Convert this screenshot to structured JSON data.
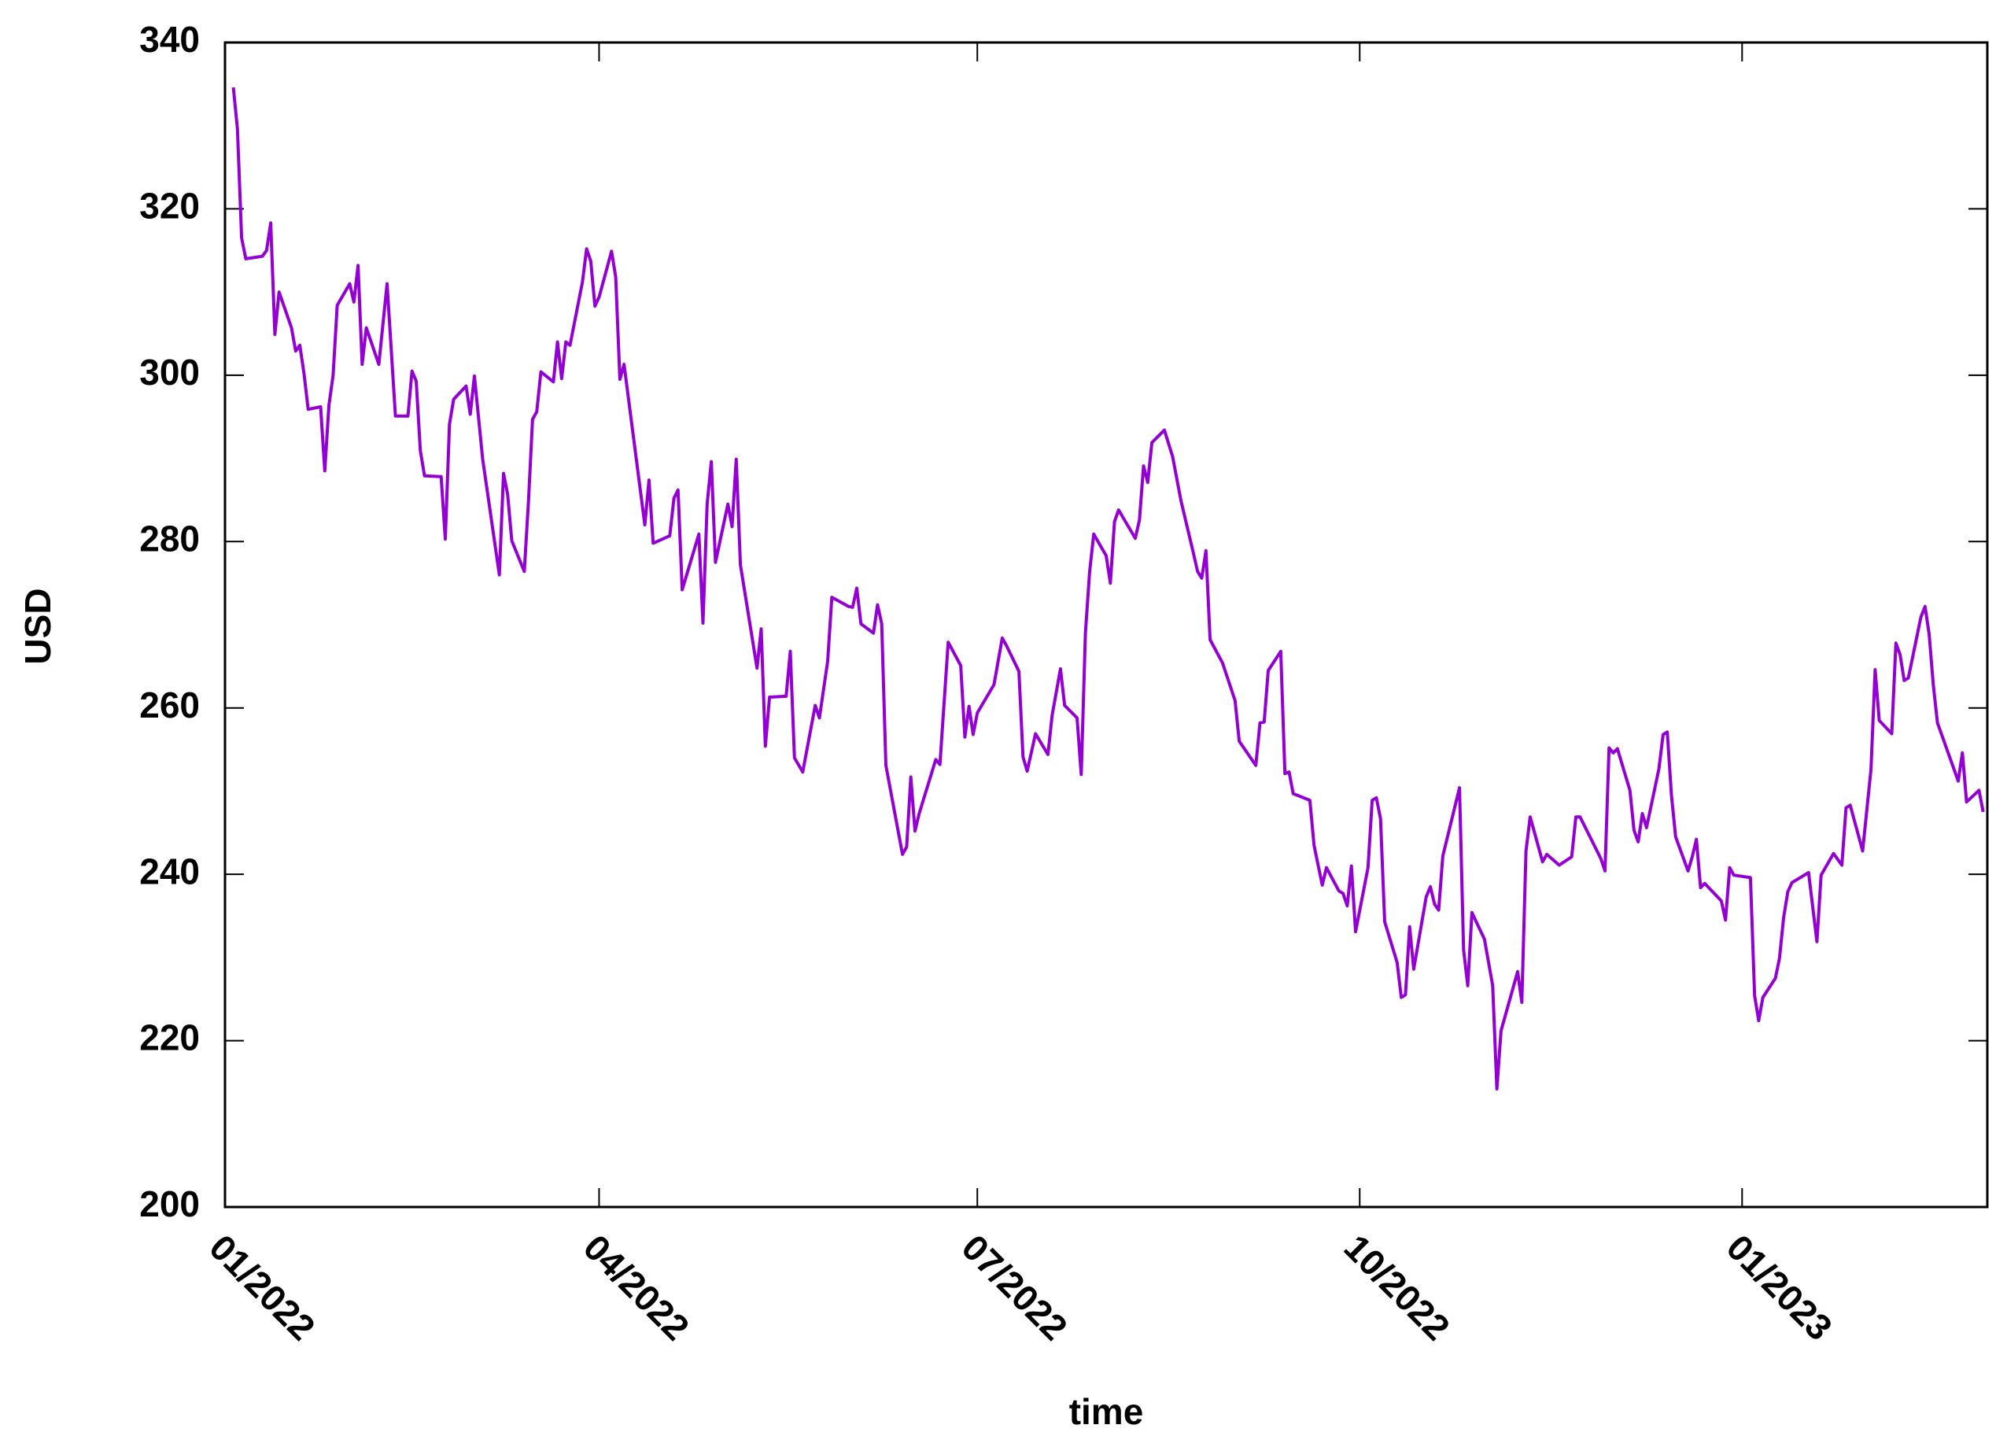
{
  "chart_data": {
    "type": "line",
    "xlabel": "time",
    "ylabel": "USD",
    "color": "#9400d3",
    "xlim": [
      "2022-01",
      "2023-03"
    ],
    "xticks": [
      {
        "value": "2022-01",
        "label": "01/2022"
      },
      {
        "value": "2022-04",
        "label": "04/2022"
      },
      {
        "value": "2022-07",
        "label": "07/2022"
      },
      {
        "value": "2022-10",
        "label": "10/2022"
      },
      {
        "value": "2023-01",
        "label": "01/2023"
      }
    ],
    "ylim": [
      200,
      340
    ],
    "yticks": [
      200,
      220,
      240,
      260,
      280,
      300,
      320,
      340
    ],
    "x": [
      "2022-01-03",
      "2022-01-04",
      "2022-01-05",
      "2022-01-06",
      "2022-01-10",
      "2022-01-11",
      "2022-01-12",
      "2022-01-13",
      "2022-01-14",
      "2022-01-17",
      "2022-01-18",
      "2022-01-19",
      "2022-01-20",
      "2022-01-21",
      "2022-01-24",
      "2022-01-25",
      "2022-01-26",
      "2022-01-27",
      "2022-01-28",
      "2022-01-31",
      "2022-02-01",
      "2022-02-02",
      "2022-02-03",
      "2022-02-04",
      "2022-02-07",
      "2022-02-09",
      "2022-02-11",
      "2022-02-14",
      "2022-02-15",
      "2022-02-16",
      "2022-02-17",
      "2022-02-18",
      "2022-02-22",
      "2022-02-23",
      "2022-02-24",
      "2022-02-25",
      "2022-02-28",
      "2022-03-01",
      "2022-03-02",
      "2022-03-04",
      "2022-03-08",
      "2022-03-09",
      "2022-03-10",
      "2022-03-11",
      "2022-03-14",
      "2022-03-15",
      "2022-03-16",
      "2022-03-17",
      "2022-03-18",
      "2022-03-21",
      "2022-03-22",
      "2022-03-23",
      "2022-03-24",
      "2022-03-25",
      "2022-03-28",
      "2022-03-29",
      "2022-03-30",
      "2022-03-31",
      "2022-04-01",
      "2022-04-04",
      "2022-04-05",
      "2022-04-06",
      "2022-04-07",
      "2022-04-12",
      "2022-04-13",
      "2022-04-14",
      "2022-04-18",
      "2022-04-19",
      "2022-04-20",
      "2022-04-21",
      "2022-04-25",
      "2022-04-26",
      "2022-04-27",
      "2022-04-28",
      "2022-04-29",
      "2022-05-02",
      "2022-05-03",
      "2022-05-04",
      "2022-05-05",
      "2022-05-09",
      "2022-05-10",
      "2022-05-11",
      "2022-05-12",
      "2022-05-16",
      "2022-05-17",
      "2022-05-18",
      "2022-05-20",
      "2022-05-23",
      "2022-05-24",
      "2022-05-26",
      "2022-05-27",
      "2022-05-31",
      "2022-06-01",
      "2022-06-02",
      "2022-06-03",
      "2022-06-06",
      "2022-06-07",
      "2022-06-08",
      "2022-06-09",
      "2022-06-13",
      "2022-06-14",
      "2022-06-15",
      "2022-06-16",
      "2022-06-17",
      "2022-06-21",
      "2022-06-22",
      "2022-06-24",
      "2022-06-27",
      "2022-06-28",
      "2022-06-29",
      "2022-06-30",
      "2022-07-01",
      "2022-07-05",
      "2022-07-07",
      "2022-07-08",
      "2022-07-11",
      "2022-07-12",
      "2022-07-13",
      "2022-07-15",
      "2022-07-18",
      "2022-07-19",
      "2022-07-21",
      "2022-07-22",
      "2022-07-25",
      "2022-07-26",
      "2022-07-27",
      "2022-07-28",
      "2022-07-29",
      "2022-08-01",
      "2022-08-02",
      "2022-08-03",
      "2022-08-04",
      "2022-08-08",
      "2022-08-09",
      "2022-08-10",
      "2022-08-11",
      "2022-08-12",
      "2022-08-15",
      "2022-08-17",
      "2022-08-19",
      "2022-08-22",
      "2022-08-23",
      "2022-08-24",
      "2022-08-25",
      "2022-08-26",
      "2022-08-29",
      "2022-09-01",
      "2022-09-02",
      "2022-09-06",
      "2022-09-07",
      "2022-09-08",
      "2022-09-09",
      "2022-09-12",
      "2022-09-13",
      "2022-09-14",
      "2022-09-15",
      "2022-09-19",
      "2022-09-20",
      "2022-09-21",
      "2022-09-22",
      "2022-09-23",
      "2022-09-26",
      "2022-09-27",
      "2022-09-28",
      "2022-09-29",
      "2022-09-30",
      "2022-10-03",
      "2022-10-04",
      "2022-10-05",
      "2022-10-06",
      "2022-10-07",
      "2022-10-10",
      "2022-10-11",
      "2022-10-12",
      "2022-10-13",
      "2022-10-14",
      "2022-10-17",
      "2022-10-18",
      "2022-10-19",
      "2022-10-20",
      "2022-10-21",
      "2022-10-25",
      "2022-10-26",
      "2022-10-27",
      "2022-10-28",
      "2022-10-31",
      "2022-11-02",
      "2022-11-03",
      "2022-11-04",
      "2022-11-08",
      "2022-11-09",
      "2022-11-10",
      "2022-11-11",
      "2022-11-14",
      "2022-11-15",
      "2022-11-18",
      "2022-11-21",
      "2022-11-22",
      "2022-11-23",
      "2022-11-28",
      "2022-11-29",
      "2022-11-30",
      "2022-12-01",
      "2022-12-02",
      "2022-12-05",
      "2022-12-06",
      "2022-12-07",
      "2022-12-08",
      "2022-12-09",
      "2022-12-12",
      "2022-12-13",
      "2022-12-14",
      "2022-12-15",
      "2022-12-16",
      "2022-12-19",
      "2022-12-20",
      "2022-12-21",
      "2022-12-22",
      "2022-12-23",
      "2022-12-27",
      "2022-12-28",
      "2022-12-29",
      "2022-12-30",
      "2023-01-03",
      "2023-01-04",
      "2023-01-05",
      "2023-01-06",
      "2023-01-09",
      "2023-01-10",
      "2023-01-11",
      "2023-01-12",
      "2023-01-13",
      "2023-01-17",
      "2023-01-19",
      "2023-01-20",
      "2023-01-23",
      "2023-01-25",
      "2023-01-26",
      "2023-01-27",
      "2023-01-30",
      "2023-02-01",
      "2023-02-02",
      "2023-02-03",
      "2023-02-06",
      "2023-02-07",
      "2023-02-08",
      "2023-02-09",
      "2023-02-10",
      "2023-02-13",
      "2023-02-14",
      "2023-02-15",
      "2023-02-16",
      "2023-02-17",
      "2023-02-22",
      "2023-02-23",
      "2023-02-24",
      "2023-02-27",
      "2023-02-28"
    ],
    "values": [
      334.6,
      329.6,
      316.5,
      314,
      314.3,
      315,
      318.3,
      304.9,
      310,
      305.7,
      302.9,
      303.6,
      300.2,
      295.9,
      296.2,
      288.5,
      296.4,
      300,
      308.4,
      311,
      308.8,
      313.2,
      301.3,
      305.7,
      301.3,
      311,
      295.1,
      295.1,
      300.5,
      299.3,
      290.9,
      287.9,
      287.8,
      280.3,
      294.1,
      297.1,
      298.7,
      295.3,
      299.9,
      289.9,
      276,
      288.2,
      285.7,
      280.1,
      276.4,
      284.8,
      294.7,
      295.6,
      300.4,
      299.2,
      304,
      299.6,
      304,
      303.6,
      311.2,
      315.2,
      313.7,
      308.3,
      309.4,
      314.9,
      311.8,
      299.5,
      301.3,
      282,
      287.4,
      279.8,
      280.7,
      285.2,
      286.2,
      274.2,
      280.9,
      270.2,
      284.5,
      289.6,
      277.5,
      284.5,
      281.8,
      289.9,
      277.2,
      264.8,
      269.5,
      255.4,
      261.3,
      261.4,
      266.8,
      254,
      252.3,
      260.3,
      258.8,
      265.6,
      273.3,
      272.2,
      272.1,
      274.4,
      270.1,
      269,
      272.4,
      270.1,
      253.1,
      242.4,
      243.3,
      251.7,
      245.2,
      247.3,
      253.8,
      253.2,
      267.9,
      265.1,
      256.5,
      260.2,
      256.8,
      259.4,
      262.8,
      268.4,
      267.5,
      264.4,
      254.1,
      252.4,
      256.9,
      254.4,
      259.1,
      264.7,
      260.3,
      258.8,
      252,
      269,
      276.3,
      280.9,
      278.3,
      275,
      282.4,
      283.8,
      280.4,
      282.6,
      289.1,
      287.1,
      291.9,
      293.4,
      290.2,
      284.9,
      278.6,
      276.4,
      275.6,
      278.9,
      268.2,
      265.4,
      260.9,
      256,
      253.1,
      258.2,
      258.3,
      264.5,
      266.8,
      252.1,
      252.3,
      249.7,
      248.9,
      243.5,
      241.1,
      238.7,
      240.8,
      238,
      237.7,
      236.2,
      241,
      233.1,
      240.8,
      248.9,
      249.2,
      246.7,
      234.3,
      229.4,
      225.2,
      225.5,
      233.7,
      228.6,
      237.3,
      238.5,
      236.4,
      235.7,
      242.2,
      250.4,
      230.9,
      226.6,
      235.4,
      232.2,
      226.6,
      214.2,
      221.2,
      228.3,
      224.6,
      242.8,
      246.9,
      241.5,
      242.4,
      241.1,
      242.1,
      246.9,
      246.9,
      241.9,
      240.4,
      255.2,
      254.6,
      255.1,
      250.1,
      245.3,
      243.9,
      247.3,
      245.6,
      252.7,
      256.8,
      257.1,
      249.5,
      244.5,
      240.4,
      242.1,
      244.2,
      238.4,
      238.9,
      236.8,
      234.5,
      240.8,
      239.9,
      239.6,
      225.4,
      222.4,
      225.2,
      227.5,
      229.9,
      234.8,
      237.9,
      239,
      240.2,
      231.9,
      239.9,
      242.5,
      241.1,
      248,
      248.3,
      242.8,
      252.6,
      264.6,
      258.5,
      256.9,
      267.8,
      266.4,
      263.3,
      263.6,
      270.9,
      272.2,
      268.9,
      262.8,
      258.2,
      251.2,
      254.6,
      248.7,
      250.1,
      247.5
    ]
  }
}
